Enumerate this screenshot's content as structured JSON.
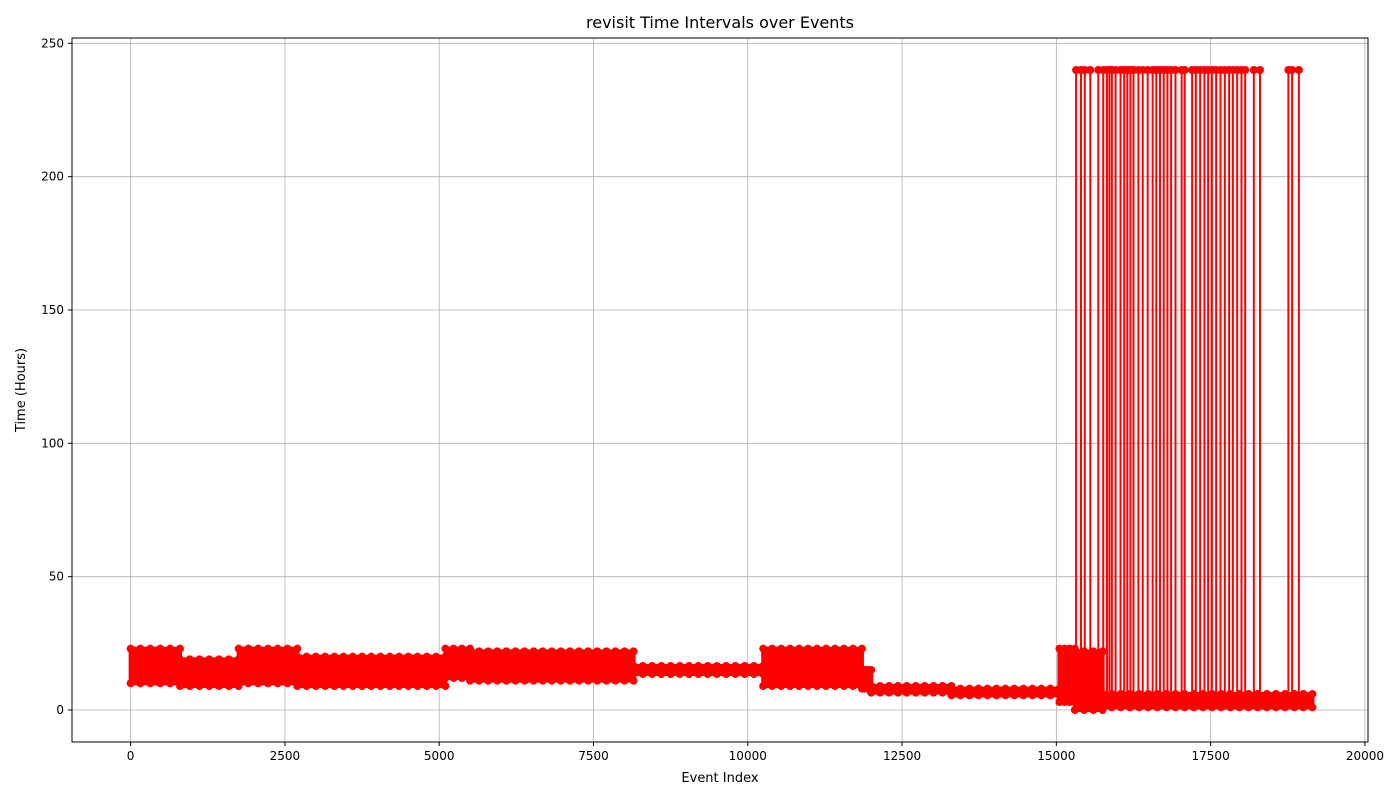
{
  "chart_data": {
    "type": "line",
    "title": "revisit Time Intervals over Events",
    "xlabel": "Event Index",
    "ylabel": "Time (Hours)",
    "xlim": [
      -950,
      20050
    ],
    "ylim": [
      -12,
      252
    ],
    "xticks": [
      0,
      2500,
      5000,
      7500,
      10000,
      12500,
      15000,
      17500,
      20000
    ],
    "xtick_labels": [
      "0",
      "2500",
      "5000",
      "7500",
      "10000",
      "12500",
      "15000",
      "17500",
      "20000"
    ],
    "yticks": [
      0,
      50,
      100,
      150,
      200,
      250
    ],
    "ytick_labels": [
      "0",
      "50",
      "100",
      "150",
      "200",
      "250"
    ],
    "grid": true,
    "legend": "none",
    "marker": "circle",
    "series_color": "#ff0000",
    "series": [
      {
        "name": "",
        "segments": [
          {
            "x_start": 0,
            "x_end": 800,
            "y_low": 10,
            "y_high": 23
          },
          {
            "x_start": 800,
            "x_end": 1750,
            "y_low": 9,
            "y_high": 19
          },
          {
            "x_start": 1750,
            "x_end": 2700,
            "y_low": 10,
            "y_high": 23
          },
          {
            "x_start": 2700,
            "x_end": 5100,
            "y_low": 9,
            "y_high": 20
          },
          {
            "x_start": 5100,
            "x_end": 5500,
            "y_low": 12,
            "y_high": 23
          },
          {
            "x_start": 5500,
            "x_end": 8150,
            "y_low": 11,
            "y_high": 22
          },
          {
            "x_start": 8150,
            "x_end": 10250,
            "y_low": 13.5,
            "y_high": 16.5
          },
          {
            "x_start": 10250,
            "x_end": 11850,
            "y_low": 9,
            "y_high": 23
          },
          {
            "x_start": 11850,
            "x_end": 12000,
            "y_low": 8,
            "y_high": 15
          },
          {
            "x_start": 12000,
            "x_end": 13300,
            "y_low": 6.5,
            "y_high": 9
          },
          {
            "x_start": 13300,
            "x_end": 15050,
            "y_low": 5.5,
            "y_high": 8
          },
          {
            "x_start": 15050,
            "x_end": 15300,
            "y_low": 3,
            "y_high": 23
          },
          {
            "x_start": 15300,
            "x_end": 15750,
            "y_low": 0,
            "y_high": 22
          },
          {
            "x_start": 15750,
            "x_end": 19150,
            "y_low": 1,
            "y_high": 6
          }
        ],
        "spikes": [
          {
            "x": 15320,
            "y": 240
          },
          {
            "x": 15400,
            "y": 240
          },
          {
            "x": 15460,
            "y": 240
          },
          {
            "x": 15550,
            "y": 240
          },
          {
            "x": 15680,
            "y": 240
          },
          {
            "x": 15760,
            "y": 240
          },
          {
            "x": 15820,
            "y": 240
          },
          {
            "x": 15860,
            "y": 240
          },
          {
            "x": 15900,
            "y": 240
          },
          {
            "x": 15960,
            "y": 240
          },
          {
            "x": 16040,
            "y": 240
          },
          {
            "x": 16100,
            "y": 240
          },
          {
            "x": 16150,
            "y": 240
          },
          {
            "x": 16200,
            "y": 240
          },
          {
            "x": 16250,
            "y": 240
          },
          {
            "x": 16330,
            "y": 240
          },
          {
            "x": 16400,
            "y": 240
          },
          {
            "x": 16480,
            "y": 240
          },
          {
            "x": 16560,
            "y": 240
          },
          {
            "x": 16620,
            "y": 240
          },
          {
            "x": 16680,
            "y": 240
          },
          {
            "x": 16740,
            "y": 240
          },
          {
            "x": 16800,
            "y": 240
          },
          {
            "x": 16860,
            "y": 240
          },
          {
            "x": 16930,
            "y": 240
          },
          {
            "x": 17030,
            "y": 240
          },
          {
            "x": 17080,
            "y": 240
          },
          {
            "x": 17200,
            "y": 240
          },
          {
            "x": 17260,
            "y": 240
          },
          {
            "x": 17330,
            "y": 240
          },
          {
            "x": 17400,
            "y": 240
          },
          {
            "x": 17460,
            "y": 240
          },
          {
            "x": 17520,
            "y": 240
          },
          {
            "x": 17590,
            "y": 240
          },
          {
            "x": 17660,
            "y": 240
          },
          {
            "x": 17730,
            "y": 240
          },
          {
            "x": 17800,
            "y": 240
          },
          {
            "x": 17860,
            "y": 240
          },
          {
            "x": 17930,
            "y": 240
          },
          {
            "x": 18000,
            "y": 240
          },
          {
            "x": 18060,
            "y": 240
          },
          {
            "x": 18200,
            "y": 240
          },
          {
            "x": 18300,
            "y": 240
          },
          {
            "x": 18760,
            "y": 240
          },
          {
            "x": 18820,
            "y": 240
          },
          {
            "x": 18930,
            "y": 240
          }
        ]
      }
    ]
  }
}
